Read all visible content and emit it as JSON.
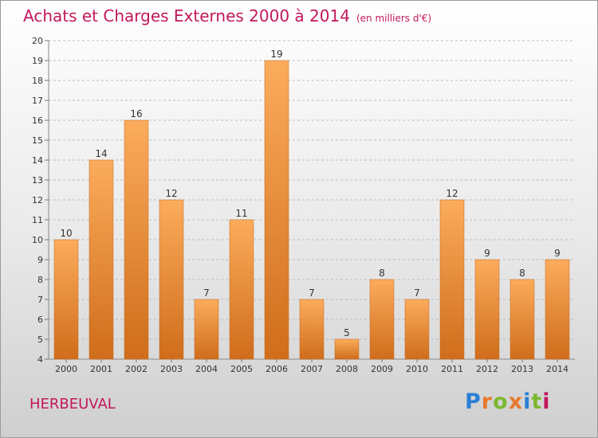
{
  "title": "Achats et Charges Externes 2000 à 2014",
  "subtitle": "(en milliers d'€)",
  "commune": "HERBEUVAL",
  "logo": {
    "text": "Proxiti",
    "letter_colors": [
      "#2a7fd4",
      "#e8792b",
      "#7cb82f",
      "#e8792b",
      "#2a7fd4",
      "#7cb82f",
      "#c2185b"
    ]
  },
  "colors": {
    "title": "#c2185b",
    "bar_top": "#fbac5c",
    "bar_bottom": "#cf6d1b",
    "grid": "#bcbcbc"
  },
  "chart_data": {
    "type": "bar",
    "categories": [
      "2000",
      "2001",
      "2002",
      "2003",
      "2004",
      "2005",
      "2006",
      "2007",
      "2008",
      "2009",
      "2010",
      "2011",
      "2012",
      "2013",
      "2014"
    ],
    "values": [
      10,
      14,
      16,
      12,
      7,
      11,
      19,
      7,
      5,
      8,
      7,
      12,
      9,
      8,
      9
    ],
    "ylim": [
      4,
      20
    ],
    "yticks": [
      4,
      5,
      6,
      7,
      8,
      9,
      10,
      11,
      12,
      13,
      14,
      15,
      16,
      17,
      18,
      19,
      20
    ],
    "grid": true,
    "data_labels": true
  }
}
